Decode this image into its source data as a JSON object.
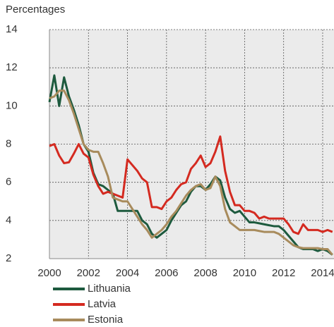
{
  "chart_data": {
    "type": "line",
    "ylabel": "Percentages",
    "x": [
      2000,
      2000.25,
      2000.5,
      2000.75,
      2001,
      2001.25,
      2001.5,
      2001.75,
      2002,
      2002.25,
      2002.5,
      2002.75,
      2003,
      2003.25,
      2003.5,
      2003.75,
      2004,
      2004.25,
      2004.5,
      2004.75,
      2005,
      2005.25,
      2005.5,
      2005.75,
      2006,
      2006.25,
      2006.5,
      2006.75,
      2007,
      2007.25,
      2007.5,
      2007.75,
      2008,
      2008.25,
      2008.5,
      2008.75,
      2009,
      2009.25,
      2009.5,
      2009.75,
      2010,
      2010.25,
      2010.5,
      2010.75,
      2011,
      2011.25,
      2011.5,
      2011.75,
      2012,
      2012.25,
      2012.5,
      2012.75,
      2013,
      2013.25,
      2013.5,
      2013.75,
      2014,
      2014.25,
      2014.5
    ],
    "series": [
      {
        "name": "Lithuania",
        "color": "#1d5a3e",
        "values": [
          10.2,
          11.6,
          10.0,
          11.5,
          10.5,
          9.8,
          9.0,
          8.0,
          7.6,
          6.5,
          5.9,
          5.8,
          5.6,
          5.4,
          4.5,
          4.5,
          4.5,
          4.5,
          4.5,
          4.0,
          3.8,
          3.3,
          3.1,
          3.3,
          3.5,
          4.0,
          4.4,
          4.8,
          5.0,
          5.5,
          5.8,
          5.8,
          5.6,
          5.9,
          6.3,
          6.1,
          5.2,
          4.6,
          4.4,
          4.5,
          4.2,
          3.9,
          3.9,
          3.85,
          3.8,
          3.75,
          3.7,
          3.7,
          3.5,
          3.2,
          2.9,
          2.6,
          2.5,
          2.5,
          2.5,
          2.4,
          2.5,
          2.4,
          2.2
        ]
      },
      {
        "name": "Latvia",
        "color": "#d42a20",
        "values": [
          7.9,
          8.0,
          7.4,
          7.0,
          7.05,
          7.5,
          8.0,
          7.5,
          7.3,
          6.4,
          5.8,
          5.4,
          5.5,
          5.4,
          5.3,
          5.2,
          7.2,
          6.9,
          6.6,
          6.2,
          6.0,
          4.7,
          4.7,
          4.6,
          5.0,
          5.2,
          5.6,
          5.9,
          6.0,
          6.7,
          7.0,
          7.4,
          6.8,
          7.0,
          7.6,
          8.4,
          6.6,
          5.5,
          4.8,
          4.8,
          4.5,
          4.5,
          4.4,
          4.1,
          4.2,
          4.1,
          4.1,
          4.1,
          4.1,
          3.8,
          3.4,
          3.3,
          3.8,
          3.5,
          3.5,
          3.5,
          3.4,
          3.5,
          3.4
        ]
      },
      {
        "name": "Estonia",
        "color": "#a88b5c",
        "values": [
          10.4,
          10.5,
          10.8,
          10.8,
          10.3,
          9.6,
          8.8,
          8.0,
          7.7,
          7.6,
          7.6,
          7.0,
          6.3,
          5.2,
          5.1,
          5.0,
          5.0,
          4.6,
          4.2,
          3.8,
          3.5,
          3.1,
          3.3,
          3.5,
          3.8,
          4.2,
          4.5,
          4.9,
          5.3,
          5.6,
          5.8,
          5.9,
          5.6,
          5.7,
          6.3,
          5.8,
          4.6,
          3.9,
          3.7,
          3.5,
          3.5,
          3.5,
          3.5,
          3.45,
          3.4,
          3.4,
          3.4,
          3.3,
          3.1,
          2.9,
          2.7,
          2.6,
          2.55,
          2.55,
          2.55,
          2.55,
          2.5,
          2.5,
          2.2
        ]
      }
    ],
    "xlim": [
      2000,
      2014.58
    ],
    "xticks": [
      2000,
      2002,
      2004,
      2006,
      2008,
      2010,
      2012,
      2014
    ],
    "ylim": [
      2,
      14
    ],
    "yticks": [
      2,
      4,
      6,
      8,
      10,
      12,
      14
    ],
    "grid": true
  }
}
